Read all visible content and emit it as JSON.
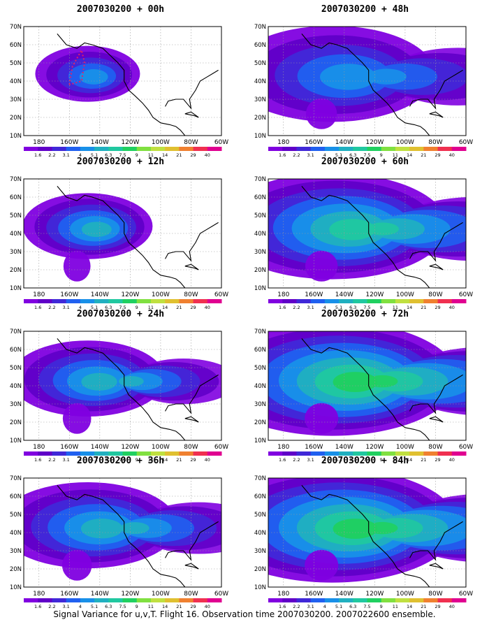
{
  "caption": "Signal Variance for u,v,T. Flight 16. Observation time 2007030200. 2007022600 ensemble.",
  "colorbar": {
    "labels": [
      "1.6",
      "2.2",
      "3.1",
      "4",
      "5.1",
      "6.3",
      "7.5",
      "9",
      "11",
      "14",
      "21",
      "29",
      "40"
    ],
    "colors": [
      "#8000e0",
      "#6000c8",
      "#4028d8",
      "#2060f0",
      "#1890e8",
      "#20b0c0",
      "#20c8a0",
      "#20d060",
      "#80e040",
      "#c0e040",
      "#e0c030",
      "#f08030",
      "#f03050",
      "#e00090"
    ]
  },
  "chart_data": [
    {
      "type": "heatmap",
      "title": "2007030200 + 00h",
      "xlabel": "",
      "ylabel": "",
      "x_ticks": [
        "180",
        "160W",
        "140W",
        "120W",
        "100W",
        "80W",
        "60W"
      ],
      "y_ticks": [
        "10N",
        "20N",
        "30N",
        "40N",
        "50N",
        "60N",
        "70N"
      ],
      "xlim": [
        -190,
        -60
      ],
      "ylim": [
        10,
        70
      ],
      "lead_hours": 0,
      "max_level": "5.1",
      "level_index": 4,
      "has_flight_track": true
    },
    {
      "type": "heatmap",
      "title": "2007030200 + 48h",
      "xlabel": "",
      "ylabel": "",
      "x_ticks": [
        "180",
        "160W",
        "140W",
        "120W",
        "100W",
        "80W",
        "60W"
      ],
      "y_ticks": [
        "10N",
        "20N",
        "30N",
        "40N",
        "50N",
        "60N",
        "70N"
      ],
      "xlim": [
        -190,
        -60
      ],
      "ylim": [
        10,
        70
      ],
      "lead_hours": 48,
      "max_level": "5.1",
      "level_index": 4,
      "has_flight_track": false
    },
    {
      "type": "heatmap",
      "title": "2007030200 + 12h",
      "xlabel": "",
      "ylabel": "",
      "x_ticks": [
        "180",
        "160W",
        "140W",
        "120W",
        "100W",
        "80W",
        "60W"
      ],
      "y_ticks": [
        "10N",
        "20N",
        "30N",
        "40N",
        "50N",
        "60N",
        "70N"
      ],
      "xlim": [
        -190,
        -60
      ],
      "ylim": [
        10,
        70
      ],
      "lead_hours": 12,
      "max_level": "6.3",
      "level_index": 5,
      "has_flight_track": false
    },
    {
      "type": "heatmap",
      "title": "2007030200 + 60h",
      "xlabel": "",
      "ylabel": "",
      "x_ticks": [
        "180",
        "160W",
        "140W",
        "120W",
        "100W",
        "80W",
        "60W"
      ],
      "y_ticks": [
        "10N",
        "20N",
        "30N",
        "40N",
        "50N",
        "60N",
        "70N"
      ],
      "xlim": [
        -190,
        -60
      ],
      "ylim": [
        10,
        70
      ],
      "lead_hours": 60,
      "max_level": "7.5",
      "level_index": 6,
      "has_flight_track": false
    },
    {
      "type": "heatmap",
      "title": "2007030200 + 24h",
      "xlabel": "",
      "ylabel": "",
      "x_ticks": [
        "180",
        "160W",
        "140W",
        "120W",
        "100W",
        "80W",
        "60W"
      ],
      "y_ticks": [
        "10N",
        "20N",
        "30N",
        "40N",
        "50N",
        "60N",
        "70N"
      ],
      "xlim": [
        -190,
        -60
      ],
      "ylim": [
        10,
        70
      ],
      "lead_hours": 24,
      "max_level": "6.3",
      "level_index": 5,
      "has_flight_track": false
    },
    {
      "type": "heatmap",
      "title": "2007030200 + 72h",
      "xlabel": "",
      "ylabel": "",
      "x_ticks": [
        "180",
        "160W",
        "140W",
        "120W",
        "100W",
        "80W",
        "60W"
      ],
      "y_ticks": [
        "10N",
        "20N",
        "30N",
        "40N",
        "50N",
        "60N",
        "70N"
      ],
      "xlim": [
        -190,
        -60
      ],
      "ylim": [
        10,
        70
      ],
      "lead_hours": 72,
      "max_level": "9",
      "level_index": 7,
      "has_flight_track": false
    },
    {
      "type": "heatmap",
      "title": "2007030200 + 36h",
      "xlabel": "",
      "ylabel": "",
      "x_ticks": [
        "180",
        "160W",
        "140W",
        "120W",
        "100W",
        "80W",
        "60W"
      ],
      "y_ticks": [
        "10N",
        "20N",
        "30N",
        "40N",
        "50N",
        "60N",
        "70N"
      ],
      "xlim": [
        -190,
        -60
      ],
      "ylim": [
        10,
        70
      ],
      "lead_hours": 36,
      "max_level": "6.3",
      "level_index": 5,
      "has_flight_track": false
    },
    {
      "type": "heatmap",
      "title": "2007030200 + 84h",
      "xlabel": "",
      "ylabel": "",
      "x_ticks": [
        "180",
        "160W",
        "140W",
        "120W",
        "100W",
        "80W",
        "60W"
      ],
      "y_ticks": [
        "10N",
        "20N",
        "30N",
        "40N",
        "50N",
        "60N",
        "70N"
      ],
      "xlim": [
        -190,
        -60
      ],
      "ylim": [
        10,
        70
      ],
      "lead_hours": 84,
      "max_level": "9",
      "level_index": 7,
      "has_flight_track": false
    }
  ]
}
